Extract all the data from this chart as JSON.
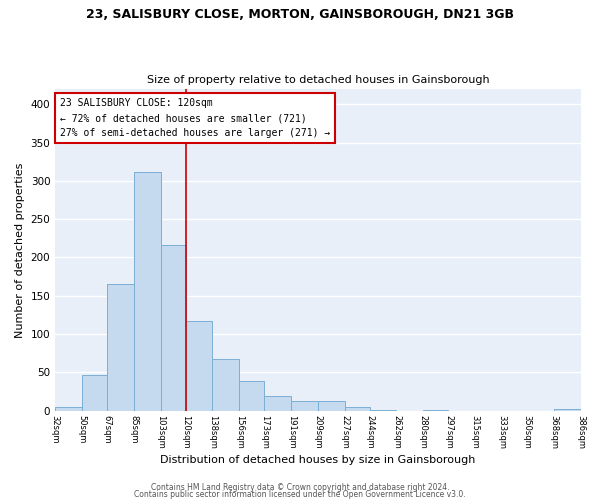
{
  "title": "23, SALISBURY CLOSE, MORTON, GAINSBOROUGH, DN21 3GB",
  "subtitle": "Size of property relative to detached houses in Gainsborough",
  "xlabel": "Distribution of detached houses by size in Gainsborough",
  "ylabel": "Number of detached properties",
  "bar_color": "#c5d9ef",
  "bar_edge_color": "#7bafd4",
  "background_color": "#e8eff8",
  "grid_color": "white",
  "annotation_line1": "23 SALISBURY CLOSE: 120sqm",
  "annotation_line2": "← 72% of detached houses are smaller (721)",
  "annotation_line3": "27% of semi-detached houses are larger (271) →",
  "annotation_box_edge": "#cc0000",
  "marker_line_color": "#cc0000",
  "marker_value": 120,
  "footer1": "Contains HM Land Registry data © Crown copyright and database right 2024.",
  "footer2": "Contains public sector information licensed under the Open Government Licence v3.0.",
  "bins": [
    32,
    50,
    67,
    85,
    103,
    120,
    138,
    156,
    173,
    191,
    209,
    227,
    244,
    262,
    280,
    297,
    315,
    333,
    350,
    368,
    386
  ],
  "counts": [
    5,
    46,
    165,
    312,
    216,
    117,
    68,
    38,
    19,
    12,
    12,
    5,
    1,
    0,
    1,
    0,
    0,
    0,
    0,
    2
  ],
  "ylim": [
    0,
    420
  ],
  "xlim": [
    32,
    386
  ],
  "yticks": [
    0,
    50,
    100,
    150,
    200,
    250,
    300,
    350,
    400
  ]
}
